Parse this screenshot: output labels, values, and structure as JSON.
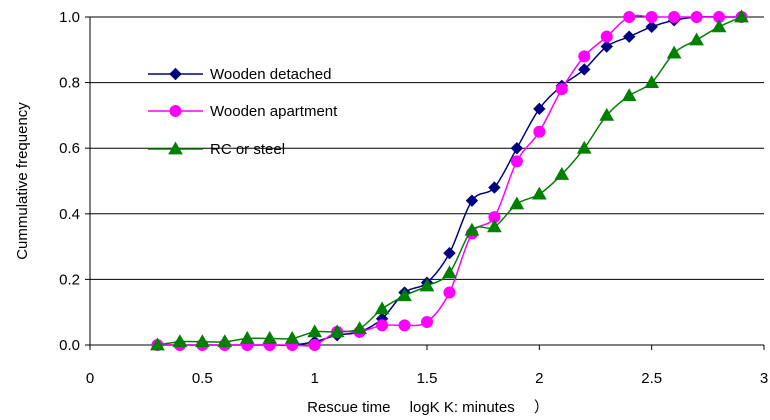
{
  "chart_data": {
    "type": "line",
    "xlabel": "Rescue time 　logK K: minutes 　）",
    "ylabel": "Cummulative frequency",
    "xlim": [
      0,
      3
    ],
    "ylim": [
      0,
      1
    ],
    "x_ticks": [
      "0",
      "0.5",
      "1",
      "1.5",
      "2",
      "2.5",
      "3"
    ],
    "y_ticks": [
      "0.0",
      "0.2",
      "0.4",
      "0.6",
      "0.8",
      "1.0"
    ],
    "grid": "horizontal",
    "legend_position": "upper-left",
    "series": [
      {
        "name": "Wooden detached",
        "color": "#000080",
        "marker": "diamond",
        "x": [
          0.3,
          0.4,
          0.5,
          0.6,
          0.7,
          0.8,
          0.9,
          1.0,
          1.1,
          1.2,
          1.3,
          1.4,
          1.5,
          1.6,
          1.7,
          1.8,
          1.9,
          2.0,
          2.1,
          2.2,
          2.3,
          2.4,
          2.5,
          2.6,
          2.7,
          2.8,
          2.9
        ],
        "y": [
          0.0,
          0.0,
          0.0,
          0.0,
          0.0,
          0.0,
          0.0,
          0.01,
          0.03,
          0.04,
          0.08,
          0.16,
          0.19,
          0.28,
          0.44,
          0.48,
          0.6,
          0.72,
          0.79,
          0.84,
          0.91,
          0.94,
          0.97,
          0.99,
          1.0,
          1.0,
          1.0
        ]
      },
      {
        "name": "Wooden apartment",
        "color": "#ff00ff",
        "marker": "circle",
        "x": [
          0.3,
          0.4,
          0.5,
          0.6,
          0.7,
          0.8,
          0.9,
          1.0,
          1.1,
          1.2,
          1.3,
          1.4,
          1.5,
          1.6,
          1.7,
          1.8,
          1.9,
          2.0,
          2.1,
          2.2,
          2.3,
          2.4,
          2.5,
          2.6,
          2.7,
          2.8,
          2.9
        ],
        "y": [
          0.0,
          0.0,
          0.0,
          0.0,
          0.0,
          0.0,
          0.0,
          0.0,
          0.04,
          0.04,
          0.06,
          0.06,
          0.07,
          0.16,
          0.34,
          0.39,
          0.56,
          0.65,
          0.78,
          0.88,
          0.94,
          1.0,
          1.0,
          1.0,
          1.0,
          1.0,
          1.0
        ]
      },
      {
        "name": "RC or steel",
        "color": "#008000",
        "marker": "triangle",
        "x": [
          0.3,
          0.4,
          0.5,
          0.6,
          0.7,
          0.8,
          0.9,
          1.0,
          1.1,
          1.2,
          1.3,
          1.4,
          1.5,
          1.6,
          1.7,
          1.8,
          1.9,
          2.0,
          2.1,
          2.2,
          2.3,
          2.4,
          2.5,
          2.6,
          2.7,
          2.8,
          2.9
        ],
        "y": [
          0.0,
          0.01,
          0.01,
          0.01,
          0.02,
          0.02,
          0.02,
          0.04,
          0.04,
          0.05,
          0.11,
          0.15,
          0.18,
          0.22,
          0.35,
          0.36,
          0.43,
          0.46,
          0.52,
          0.6,
          0.7,
          0.76,
          0.8,
          0.89,
          0.93,
          0.97,
          1.0
        ]
      }
    ]
  }
}
